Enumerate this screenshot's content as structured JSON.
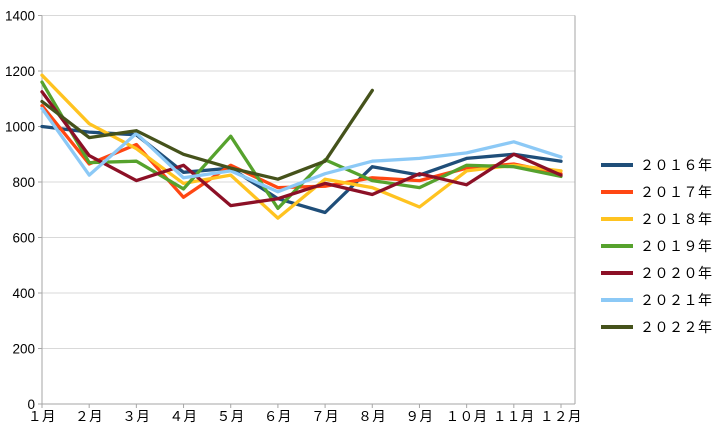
{
  "chart_data": {
    "type": "line",
    "title": "",
    "xlabel": "",
    "ylabel": "",
    "categories": [
      "１月",
      "２月",
      "３月",
      "４月",
      "５月",
      "６月",
      "７月",
      "８月",
      "９月",
      "１０月",
      "１１月",
      "１２月"
    ],
    "y_ticks": [
      0,
      200,
      400,
      600,
      800,
      1000,
      1200,
      1400
    ],
    "ylim": [
      0,
      1400
    ],
    "grid": true,
    "legend_position": "right",
    "series": [
      {
        "name": "２０１６年",
        "color": "#1F4E79",
        "values": [
          1000,
          980,
          970,
          835,
          850,
          740,
          690,
          855,
          825,
          885,
          900,
          875
        ]
      },
      {
        "name": "２０１７年",
        "color": "#FF4713",
        "values": [
          1075,
          865,
          935,
          745,
          860,
          780,
          785,
          815,
          805,
          850,
          865,
          830
        ]
      },
      {
        "name": "２０１８年",
        "color": "#FFC320",
        "values": [
          1185,
          1010,
          920,
          795,
          825,
          670,
          810,
          780,
          710,
          840,
          860,
          840
        ]
      },
      {
        "name": "２０１９年",
        "color": "#56A22D",
        "values": [
          1160,
          870,
          875,
          775,
          965,
          705,
          880,
          805,
          780,
          860,
          855,
          820
        ]
      },
      {
        "name": "２０２０年",
        "color": "#8C1026",
        "values": [
          1125,
          895,
          805,
          860,
          715,
          740,
          795,
          755,
          830,
          790,
          900,
          825
        ]
      },
      {
        "name": "２０２１年",
        "color": "#8CC9F6",
        "values": [
          1065,
          825,
          975,
          815,
          840,
          765,
          830,
          875,
          885,
          905,
          945,
          890
        ]
      },
      {
        "name": "２０２２年",
        "color": "#45521B",
        "values": [
          1090,
          960,
          985,
          900,
          850,
          810,
          875,
          1130
        ]
      }
    ]
  },
  "style": {
    "grid_color": "#D9D9D9",
    "axis_color": "#A6A6A6",
    "text_color": "#000000",
    "background": "#FFFFFF"
  }
}
